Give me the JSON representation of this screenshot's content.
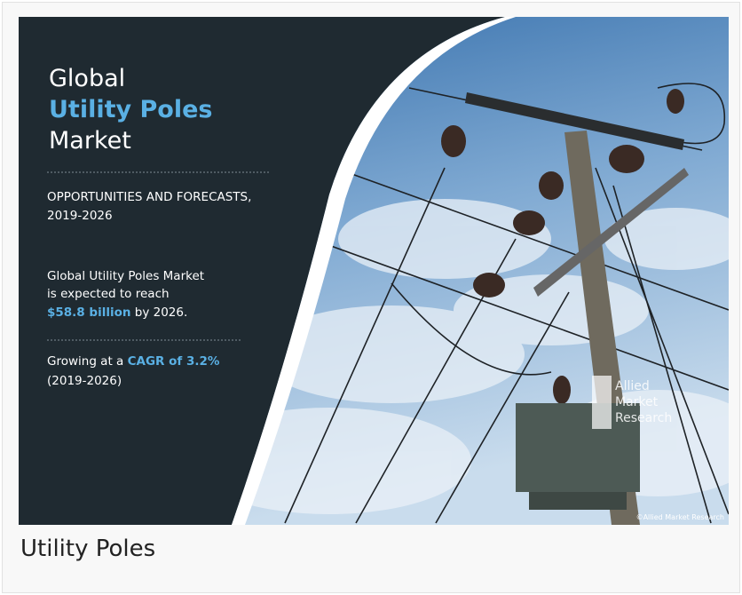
{
  "image": {
    "title": [
      "Global",
      "Utility Poles",
      "Market"
    ],
    "subtitle": [
      "OPPORTUNITIES AND FORECASTS,",
      "2019-2026"
    ],
    "statement": [
      "Global Utility Poles Market",
      "is expected to reach",
      "$58.8 billion",
      "by 2026."
    ],
    "growth": [
      "Growing at a",
      "CAGR of 3.2%",
      "(2019-2026)"
    ],
    "logo": [
      "Allied",
      "Market",
      "Research"
    ],
    "credit": "©Allied Market Research"
  },
  "caption": "Utility Poles"
}
